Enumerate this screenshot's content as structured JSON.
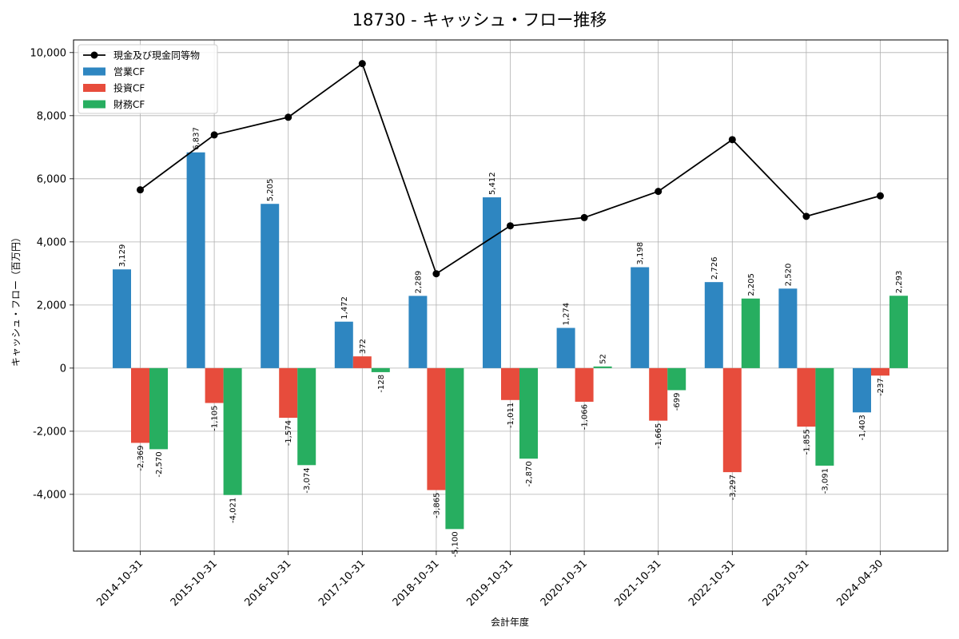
{
  "chart_data": {
    "type": "bar",
    "title": "18730 - キャッシュ・フロー推移",
    "xlabel": "会計年度",
    "ylabel": "キャッシュ・フロー（百万円）",
    "categories": [
      "2014-10-31",
      "2015-10-31",
      "2016-10-31",
      "2017-10-31",
      "2018-10-31",
      "2019-10-31",
      "2020-10-31",
      "2021-10-31",
      "2022-10-31",
      "2023-10-31",
      "2024-04-30"
    ],
    "ylim": [
      -5800,
      10400
    ],
    "yticks": [
      -4000,
      -2000,
      0,
      2000,
      4000,
      6000,
      8000,
      10000
    ],
    "ytick_labels": [
      "-4,000",
      "-2,000",
      "0",
      "2,000",
      "4,000",
      "6,000",
      "8,000",
      "10,000"
    ],
    "grid": true,
    "legend_position": "top-left",
    "series": [
      {
        "name": "営業CF",
        "kind": "bar",
        "color": "#2e86c1",
        "values": [
          3129,
          6837,
          5205,
          1472,
          2289,
          5412,
          1274,
          3198,
          2726,
          2520,
          -1403
        ],
        "labels": [
          "3,129",
          "6,837",
          "5,205",
          "1,472",
          "2,289",
          "5,412",
          "1,274",
          "3,198",
          "2,726",
          "2,520",
          "-1,403"
        ]
      },
      {
        "name": "投資CF",
        "kind": "bar",
        "color": "#e74c3c",
        "values": [
          -2369,
          -1105,
          -1574,
          372,
          -3865,
          -1011,
          -1066,
          -1665,
          -3297,
          -1855,
          -237
        ],
        "labels": [
          "-2,369",
          "-1,105",
          "-1,574",
          "372",
          "-3,865",
          "-1,011",
          "-1,066",
          "-1,665",
          "-3,297",
          "-1,855",
          "-237"
        ]
      },
      {
        "name": "財務CF",
        "kind": "bar",
        "color": "#27ae60",
        "values": [
          -2570,
          -4021,
          -3074,
          -128,
          -5100,
          -2870,
          52,
          -699,
          2205,
          -3091,
          2293
        ],
        "labels": [
          "-2,570",
          "-4,021",
          "-3,074",
          "-128",
          "-5,100",
          "-2,870",
          "52",
          "-699",
          "2,205",
          "-3,091",
          "2,293"
        ]
      },
      {
        "name": "現金及び現金同等物",
        "kind": "line",
        "color": "#000000",
        "values": [
          5650,
          7390,
          7950,
          9650,
          2990,
          4510,
          4770,
          5600,
          7240,
          4810,
          5460
        ]
      }
    ]
  }
}
